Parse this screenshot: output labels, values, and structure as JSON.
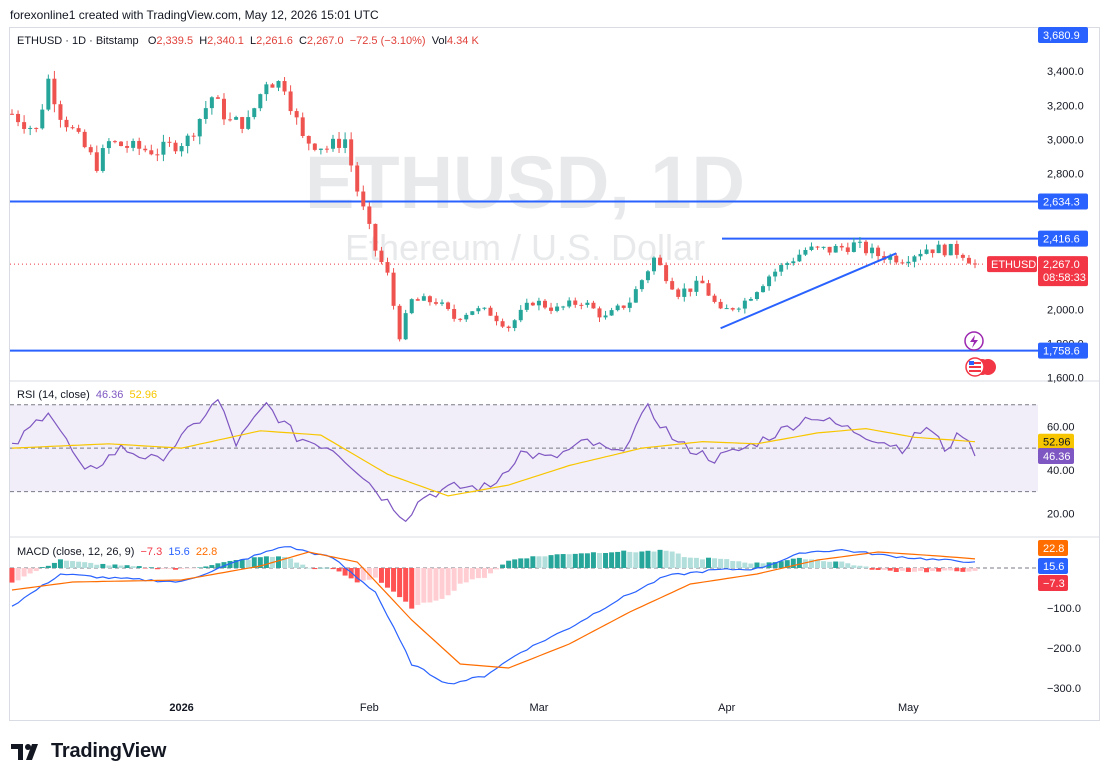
{
  "header": {
    "caption": "forexonline1 created with TradingView.com, May 12, 2026 15:01 UTC"
  },
  "symbol_bar": {
    "symbol": "ETHUSD · 1D · Bitstamp",
    "o_label": "O",
    "o": "2,339.5",
    "h_label": "H",
    "h": "2,340.1",
    "l_label": "L",
    "l": "2,261.6",
    "c_label": "C",
    "c": "2,267.0",
    "change": "−72.5 (−3.10%)",
    "vol_label": "Vol",
    "vol": "4.34 K"
  },
  "watermark": {
    "line1": "ETHUSD, 1D",
    "line2": "Ethereum / U.S. Dollar"
  },
  "price_axis": {
    "ticks": [
      "3,400.0",
      "3,200.0",
      "3,000.0",
      "2,800.0",
      "2,000.0",
      "1,800.0",
      "1,600.0"
    ],
    "levels": [
      {
        "label": "3,680.9",
        "color": "#2962ff"
      },
      {
        "label": "2,634.3",
        "color": "#2962ff"
      },
      {
        "label": "2,416.6",
        "color": "#2962ff"
      },
      {
        "label": "1,758.6",
        "color": "#2962ff"
      }
    ],
    "last_price_tag": {
      "symbol": "ETHUSD",
      "price": "2,267.0",
      "countdown": "08:58:33",
      "color": "#f23645"
    }
  },
  "rsi_panel": {
    "label": "RSI (14, close)",
    "rsi_value": "46.36",
    "ma_value": "52.96",
    "ticks": [
      "60.00",
      "40.00",
      "20.00"
    ],
    "tags": [
      {
        "label": "52.96",
        "color": "#f7c600"
      },
      {
        "label": "46.36",
        "color": "#7e57c2"
      }
    ]
  },
  "macd_panel": {
    "label": "MACD (close, 12, 26, 9)",
    "hist_value": "−7.3",
    "macd_value": "15.6",
    "signal_value": "22.8",
    "ticks": [
      "−100.0",
      "−200.0",
      "−300.0"
    ],
    "tags": [
      {
        "label": "22.8",
        "color": "#ff6d00"
      },
      {
        "label": "15.6",
        "color": "#2962ff"
      },
      {
        "label": "−7.3",
        "color": "#f23645"
      }
    ]
  },
  "time_axis": {
    "labels": [
      "2026",
      "Feb",
      "Mar",
      "Apr",
      "May"
    ]
  },
  "brand": {
    "name": "TradingView"
  },
  "chart_data": [
    {
      "type": "candlestick",
      "title": "ETHUSD, 1D",
      "subtitle": "Ethereum / U.S. Dollar",
      "x_range": [
        "2025-12-04",
        "2026-05-12"
      ],
      "ylim": [
        1580,
        3560
      ],
      "colors": {
        "up": "#26a69a",
        "down": "#ef5350"
      },
      "close_anchors": [
        [
          "2025-12-04",
          3150
        ],
        [
          "2025-12-08",
          3050
        ],
        [
          "2025-12-10",
          3350
        ],
        [
          "2025-12-12",
          3150
        ],
        [
          "2025-12-16",
          2950
        ],
        [
          "2025-12-18",
          2850
        ],
        [
          "2025-12-20",
          2980
        ],
        [
          "2025-12-24",
          2950
        ],
        [
          "2025-12-28",
          2930
        ],
        [
          "2026-01-02",
          3000
        ],
        [
          "2026-01-06",
          3250
        ],
        [
          "2026-01-09",
          3100
        ],
        [
          "2026-01-12",
          3100
        ],
        [
          "2026-01-15",
          3350
        ],
        [
          "2026-01-18",
          3320
        ],
        [
          "2026-01-21",
          3000
        ],
        [
          "2026-01-25",
          2950
        ],
        [
          "2026-01-28",
          3000
        ],
        [
          "2026-01-30",
          2700
        ],
        [
          "2026-02-02",
          2350
        ],
        [
          "2026-02-04",
          2200
        ],
        [
          "2026-02-06",
          1850
        ],
        [
          "2026-02-08",
          2050
        ],
        [
          "2026-02-12",
          2050
        ],
        [
          "2026-02-15",
          1950
        ],
        [
          "2026-02-18",
          2000
        ],
        [
          "2026-02-21",
          1980
        ],
        [
          "2026-02-24",
          1900
        ],
        [
          "2026-02-28",
          2050
        ],
        [
          "2026-03-04",
          2000
        ],
        [
          "2026-03-08",
          2050
        ],
        [
          "2026-03-12",
          1950
        ],
        [
          "2026-03-16",
          2050
        ],
        [
          "2026-03-20",
          2300
        ],
        [
          "2026-03-24",
          2100
        ],
        [
          "2026-03-28",
          2150
        ],
        [
          "2026-03-31",
          1980
        ],
        [
          "2026-04-04",
          2050
        ],
        [
          "2026-04-08",
          2200
        ],
        [
          "2026-04-14",
          2350
        ],
        [
          "2026-04-18",
          2350
        ],
        [
          "2026-04-22",
          2380
        ],
        [
          "2026-04-26",
          2320
        ],
        [
          "2026-04-30",
          2300
        ],
        [
          "2026-05-04",
          2360
        ],
        [
          "2026-05-08",
          2350
        ],
        [
          "2026-05-10",
          2330
        ],
        [
          "2026-05-12",
          2267
        ]
      ],
      "horizontal_levels": [
        2634.3,
        2416.6,
        1758.6
      ],
      "trendline": {
        "from": [
          "2026-03-31",
          1890
        ],
        "to": [
          "2026-04-29",
          2330
        ]
      },
      "last_price": 2267.0
    },
    {
      "type": "line",
      "title": "RSI (14, close)",
      "ylim": [
        10,
        80
      ],
      "bands": [
        70,
        50,
        30
      ],
      "series": [
        {
          "name": "RSI",
          "color": "#7e57c2",
          "anchors": [
            [
              "2025-12-04",
              50
            ],
            [
              "2025-12-10",
              68
            ],
            [
              "2025-12-16",
              38
            ],
            [
              "2025-12-22",
              50
            ],
            [
              "2025-12-28",
              44
            ],
            [
              "2026-01-03",
              60
            ],
            [
              "2026-01-07",
              72
            ],
            [
              "2026-01-10",
              52
            ],
            [
              "2026-01-15",
              70
            ],
            [
              "2026-01-20",
              55
            ],
            [
              "2026-01-26",
              50
            ],
            [
              "2026-01-30",
              40
            ],
            [
              "2026-02-03",
              28
            ],
            [
              "2026-02-07",
              18
            ],
            [
              "2026-02-10",
              28
            ],
            [
              "2026-02-15",
              32
            ],
            [
              "2026-02-21",
              32
            ],
            [
              "2026-02-26",
              48
            ],
            [
              "2026-03-03",
              45
            ],
            [
              "2026-03-09",
              53
            ],
            [
              "2026-03-14",
              47
            ],
            [
              "2026-03-19",
              68
            ],
            [
              "2026-03-24",
              52
            ],
            [
              "2026-03-30",
              45
            ],
            [
              "2026-04-04",
              50
            ],
            [
              "2026-04-10",
              58
            ],
            [
              "2026-04-15",
              65
            ],
            [
              "2026-04-20",
              60
            ],
            [
              "2026-04-26",
              54
            ],
            [
              "2026-04-30",
              50
            ],
            [
              "2026-05-04",
              60
            ],
            [
              "2026-05-07",
              50
            ],
            [
              "2026-05-10",
              57
            ],
            [
              "2026-05-12",
              46.36
            ]
          ]
        },
        {
          "name": "RSI-based MA",
          "color": "#f7c600",
          "anchors": [
            [
              "2025-12-04",
              50
            ],
            [
              "2025-12-20",
              52
            ],
            [
              "2026-01-01",
              50
            ],
            [
              "2026-01-14",
              58
            ],
            [
              "2026-01-24",
              56
            ],
            [
              "2026-02-04",
              38
            ],
            [
              "2026-02-14",
              28
            ],
            [
              "2026-02-24",
              33
            ],
            [
              "2026-03-06",
              42
            ],
            [
              "2026-03-18",
              50
            ],
            [
              "2026-03-28",
              53
            ],
            [
              "2026-04-06",
              52
            ],
            [
              "2026-04-16",
              57
            ],
            [
              "2026-04-24",
              59
            ],
            [
              "2026-05-02",
              55
            ],
            [
              "2026-05-12",
              52.96
            ]
          ]
        }
      ]
    },
    {
      "type": "line",
      "title": "MACD (close, 12, 26, 9)",
      "ylim": [
        -320,
        70
      ],
      "series": [
        {
          "name": "MACD",
          "color": "#2962ff",
          "anchors": [
            [
              "2025-12-04",
              -95
            ],
            [
              "2025-12-12",
              -15
            ],
            [
              "2025-12-20",
              -25
            ],
            [
              "2026-01-01",
              -35
            ],
            [
              "2026-01-10",
              15
            ],
            [
              "2026-01-18",
              55
            ],
            [
              "2026-01-26",
              25
            ],
            [
              "2026-02-02",
              -60
            ],
            [
              "2026-02-08",
              -240
            ],
            [
              "2026-02-14",
              -290
            ],
            [
              "2026-02-20",
              -270
            ],
            [
              "2026-02-26",
              -210
            ],
            [
              "2026-03-06",
              -150
            ],
            [
              "2026-03-14",
              -80
            ],
            [
              "2026-03-22",
              -20
            ],
            [
              "2026-03-30",
              -5
            ],
            [
              "2026-04-06",
              -2
            ],
            [
              "2026-04-14",
              40
            ],
            [
              "2026-04-20",
              45
            ],
            [
              "2026-04-28",
              30
            ],
            [
              "2026-05-06",
              20
            ],
            [
              "2026-05-12",
              15.6
            ]
          ]
        },
        {
          "name": "Signal",
          "color": "#ff6d00",
          "anchors": [
            [
              "2025-12-04",
              -55
            ],
            [
              "2025-12-14",
              -35
            ],
            [
              "2026-01-01",
              -30
            ],
            [
              "2026-01-14",
              5
            ],
            [
              "2026-01-22",
              40
            ],
            [
              "2026-01-30",
              15
            ],
            [
              "2026-02-08",
              -130
            ],
            [
              "2026-02-16",
              -240
            ],
            [
              "2026-02-24",
              -250
            ],
            [
              "2026-03-06",
              -190
            ],
            [
              "2026-03-16",
              -110
            ],
            [
              "2026-03-26",
              -40
            ],
            [
              "2026-04-06",
              -15
            ],
            [
              "2026-04-16",
              20
            ],
            [
              "2026-04-26",
              40
            ],
            [
              "2026-05-06",
              30
            ],
            [
              "2026-05-12",
              22.8
            ]
          ]
        }
      ],
      "histogram_color_scheme": {
        "pos_rising": "#26a69a",
        "pos_falling": "#b2dfdb",
        "neg_falling": "#ff5252",
        "neg_rising": "#ffcdd2"
      },
      "histogram_last": -7.3
    }
  ]
}
